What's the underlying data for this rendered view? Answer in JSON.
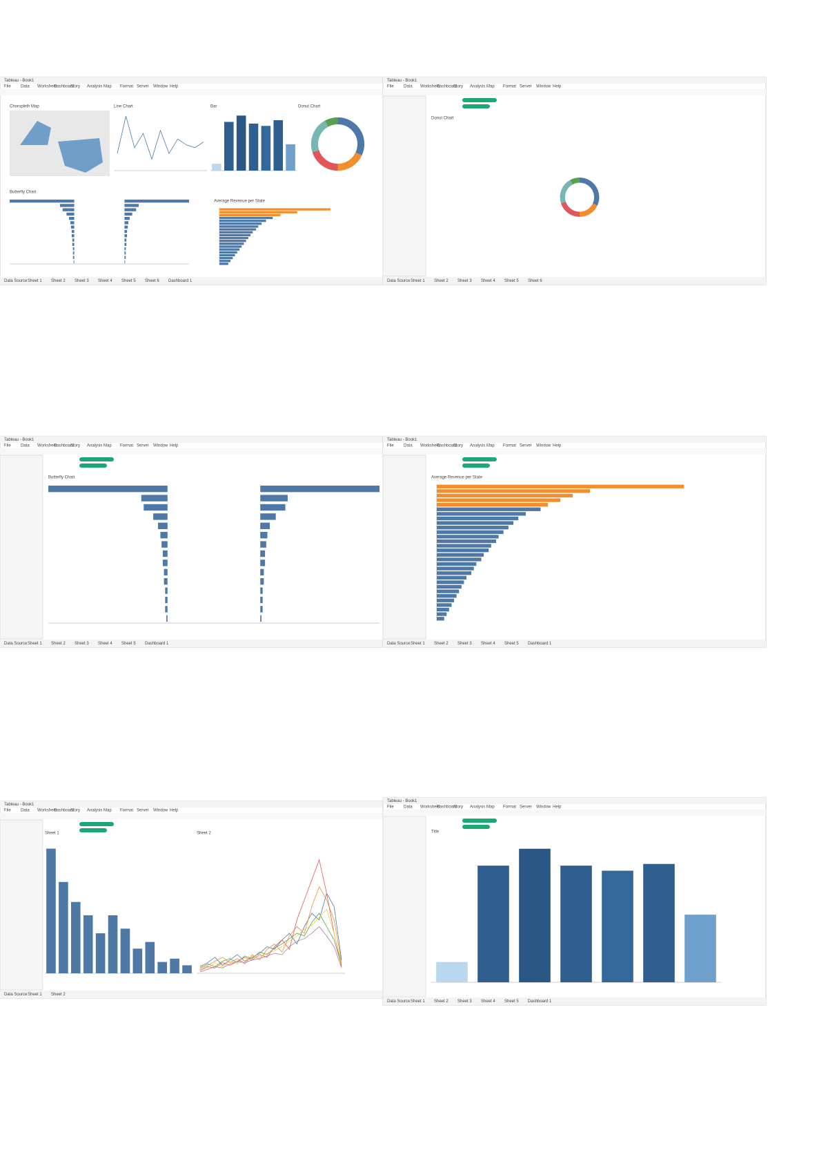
{
  "menu": [
    "File",
    "Data",
    "Worksheet",
    "Dashboard",
    "Story",
    "Analysis",
    "Map",
    "Format",
    "Server",
    "Window",
    "Help"
  ],
  "windows": [
    {
      "title": "Tableau - Book1",
      "tabs": [
        "Data Source",
        "Sheet 1",
        "Sheet 2",
        "Sheet 3",
        "Sheet 4",
        "Sheet 5",
        "Sheet 6",
        "Dashboard 1"
      ],
      "charts": [
        {
          "type": "map",
          "title": "Choropleth Map"
        },
        {
          "type": "line",
          "title": "Line Chart",
          "color": "#4e79a7",
          "values": [
            3,
            9.5,
            4,
            6.5,
            2,
            7,
            3,
            5.5,
            4.5,
            4,
            5
          ],
          "ylim": [
            0,
            10
          ]
        },
        {
          "type": "bar",
          "title": "Bar",
          "colors": [
            "#b9d7ee",
            "#2f5f8f",
            "#2b5784",
            "#2f5f8f",
            "#34689b",
            "#2f5f8f",
            "#6fa0cc"
          ],
          "values": [
            1.2,
            8.5,
            9.6,
            8.2,
            7.8,
            8.8,
            4.6
          ],
          "ylim": [
            0,
            10
          ]
        },
        {
          "type": "donut",
          "title": "Donut Chart",
          "colors": [
            "#4e79a7",
            "#f28e2b",
            "#e15759",
            "#76b7b2",
            "#59a14f"
          ],
          "values": [
            32,
            18,
            20,
            22,
            8
          ]
        },
        {
          "type": "butterfly",
          "title": "Butterfly Chart",
          "color": "#4e79a7",
          "left": [
            100,
            22,
            18,
            12,
            8,
            6,
            5,
            4,
            4,
            3,
            3,
            2,
            2,
            2,
            1
          ],
          "right": [
            100,
            22,
            18,
            12,
            8,
            6,
            5,
            4,
            4,
            3,
            3,
            2,
            2,
            2,
            1
          ],
          "lim": [
            0,
            100
          ]
        },
        {
          "type": "hbar",
          "title": "Average Revenue per State",
          "colors": [
            "#f28e2b",
            "#f28e2b",
            "#f28e2b",
            "#4e79a7",
            "#4e79a7",
            "#4e79a7",
            "#4e79a7",
            "#4e79a7",
            "#4e79a7",
            "#4e79a7",
            "#4e79a7",
            "#4e79a7",
            "#4e79a7",
            "#4e79a7",
            "#4e79a7",
            "#4e79a7",
            "#4e79a7",
            "#4e79a7",
            "#4e79a7",
            "#4e79a7"
          ],
          "values": [
            100,
            70,
            55,
            48,
            42,
            38,
            35,
            33,
            30,
            28,
            26,
            24,
            22,
            20,
            18,
            16,
            14,
            12,
            10,
            8
          ],
          "lim": [
            0,
            110
          ]
        }
      ]
    },
    {
      "title": "Tableau - Book1",
      "tabs": [
        "Data Source",
        "Sheet 1",
        "Sheet 2",
        "Sheet 3",
        "Sheet 4",
        "Sheet 5",
        "Sheet 6"
      ],
      "charts": [
        {
          "type": "donut",
          "title": "Donut Chart",
          "colors": [
            "#4e79a7",
            "#f28e2b",
            "#e15759",
            "#76b7b2",
            "#59a14f"
          ],
          "values": [
            32,
            18,
            20,
            22,
            8
          ]
        }
      ]
    },
    {
      "title": "Tableau - Book1",
      "tabs": [
        "Data Source",
        "Sheet 1",
        "Sheet 2",
        "Sheet 3",
        "Sheet 4",
        "Sheet 5",
        "Dashboard 1"
      ],
      "charts": [
        {
          "type": "butterfly",
          "title": "Butterfly Chart",
          "color": "#4e79a7",
          "left": [
            100,
            22,
            20,
            12,
            8,
            6,
            5,
            4,
            4,
            3,
            3,
            2,
            2,
            2,
            1
          ],
          "right": [
            100,
            23,
            21,
            13,
            8,
            6,
            5,
            4,
            4,
            3,
            3,
            2,
            2,
            2,
            1
          ],
          "lim": [
            0,
            100
          ]
        }
      ]
    },
    {
      "title": "Tableau - Book1",
      "tabs": [
        "Data Source",
        "Sheet 1",
        "Sheet 2",
        "Sheet 3",
        "Sheet 4",
        "Sheet 5",
        "Dashboard 1"
      ],
      "charts": [
        {
          "type": "hbar",
          "title": "Average Revenue per State",
          "colors": [
            "#f28e2b",
            "#f28e2b",
            "#f28e2b",
            "#f28e2b",
            "#f28e2b",
            "#4e79a7",
            "#4e79a7",
            "#4e79a7",
            "#4e79a7",
            "#4e79a7",
            "#4e79a7",
            "#4e79a7",
            "#4e79a7",
            "#4e79a7",
            "#4e79a7",
            "#4e79a7",
            "#4e79a7",
            "#4e79a7",
            "#4e79a7",
            "#4e79a7",
            "#4e79a7",
            "#4e79a7",
            "#4e79a7",
            "#4e79a7",
            "#4e79a7",
            "#4e79a7",
            "#4e79a7",
            "#4e79a7",
            "#4e79a7",
            "#4e79a7"
          ],
          "values": [
            100,
            62,
            55,
            50,
            45,
            42,
            36,
            33,
            31,
            29,
            27,
            25,
            24,
            22,
            21,
            19,
            18,
            16,
            15,
            14,
            12,
            11,
            10,
            9,
            8,
            7,
            6,
            5,
            4,
            3
          ],
          "lim": [
            0,
            115
          ]
        }
      ]
    },
    {
      "title": "Tableau - Book1",
      "tabs": [
        "Data Source",
        "Sheet 1",
        "Sheet 2"
      ],
      "charts": [
        {
          "type": "bar",
          "title": "Sheet 1",
          "color": "#4e79a7",
          "values": [
            187,
            137,
            107,
            87,
            60,
            87,
            67,
            37,
            47,
            17,
            22,
            12
          ],
          "ylim": [
            0,
            200
          ]
        },
        {
          "type": "line",
          "title": "Sheet 2",
          "ylim": [
            0,
            100
          ],
          "series": [
            {
              "color": "#4e79a7",
              "values": [
                5,
                8,
                12,
                6,
                10,
                14,
                9,
                12,
                15,
                20,
                18,
                25,
                30,
                22,
                35,
                45,
                40,
                60,
                50,
                10
              ]
            },
            {
              "color": "#f28e2b",
              "values": [
                3,
                6,
                9,
                12,
                8,
                11,
                7,
                14,
                10,
                18,
                22,
                16,
                28,
                35,
                30,
                50,
                65,
                55,
                40,
                8
              ]
            },
            {
              "color": "#e15759",
              "values": [
                2,
                5,
                4,
                8,
                6,
                9,
                12,
                10,
                14,
                12,
                20,
                25,
                18,
                40,
                55,
                70,
                85,
                60,
                30,
                5
              ]
            },
            {
              "color": "#59a14f",
              "values": [
                4,
                7,
                5,
                9,
                11,
                8,
                13,
                11,
                16,
                14,
                19,
                22,
                26,
                30,
                28,
                38,
                45,
                35,
                25,
                6
              ]
            },
            {
              "color": "#edc948",
              "values": [
                6,
                4,
                8,
                5,
                9,
                7,
                10,
                13,
                12,
                15,
                17,
                20,
                24,
                28,
                33,
                36,
                42,
                48,
                30,
                7
              ]
            },
            {
              "color": "#b07aa1",
              "values": [
                1,
                3,
                5,
                4,
                7,
                9,
                8,
                10,
                11,
                13,
                15,
                14,
                20,
                24,
                26,
                30,
                35,
                28,
                20,
                4
              ]
            }
          ]
        }
      ]
    },
    {
      "title": "Tableau - Book1",
      "tabs": [
        "Data Source",
        "Sheet 1",
        "Sheet 2",
        "Sheet 3",
        "Sheet 4",
        "Sheet 5",
        "Dashboard 1"
      ],
      "charts": [
        {
          "type": "bar",
          "title": "Title",
          "colors": [
            "#b9d7ee",
            "#2f5f8f",
            "#2b5784",
            "#2f5f8f",
            "#34689b",
            "#2f5f8f",
            "#6fa0cc"
          ],
          "values": [
            1.2,
            6.9,
            7.9,
            6.9,
            6.6,
            7.0,
            4.0
          ],
          "ylim": [
            0,
            8.5
          ]
        }
      ]
    }
  ]
}
